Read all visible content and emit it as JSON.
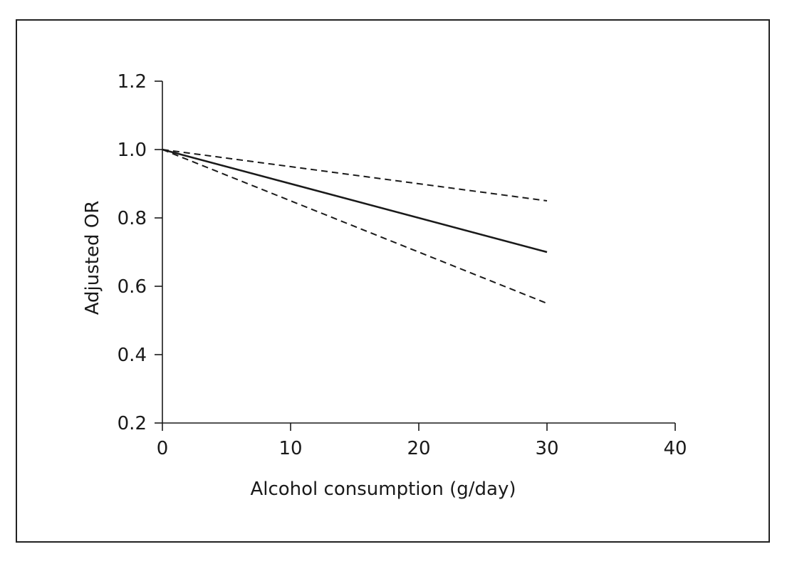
{
  "chart_data": {
    "type": "line",
    "title": "",
    "xlabel": "Alcohol consumption (g/day)",
    "ylabel": "Adjusted OR",
    "xlim": [
      0,
      40
    ],
    "ylim": [
      0.2,
      1.2
    ],
    "xticks": [
      0,
      10,
      20,
      30,
      40
    ],
    "xtick_labels": [
      "0",
      "10",
      "20",
      "30",
      "40"
    ],
    "yticks": [
      0.2,
      0.4,
      0.6,
      0.8,
      1.0,
      1.2
    ],
    "ytick_labels": [
      "0.2",
      "0.4",
      "0.6",
      "0.8",
      "1.0",
      "1.2"
    ],
    "grid": false,
    "legend": "none",
    "series": [
      {
        "style": "solid",
        "color": "#1a1a1a",
        "x": [
          0,
          30
        ],
        "y": [
          1.0,
          0.7
        ]
      },
      {
        "style": "dashed",
        "color": "#1a1a1a",
        "x": [
          0,
          30
        ],
        "y": [
          1.0,
          0.85
        ]
      },
      {
        "style": "dashed",
        "color": "#1a1a1a",
        "x": [
          0,
          30
        ],
        "y": [
          1.0,
          0.55
        ]
      }
    ]
  }
}
